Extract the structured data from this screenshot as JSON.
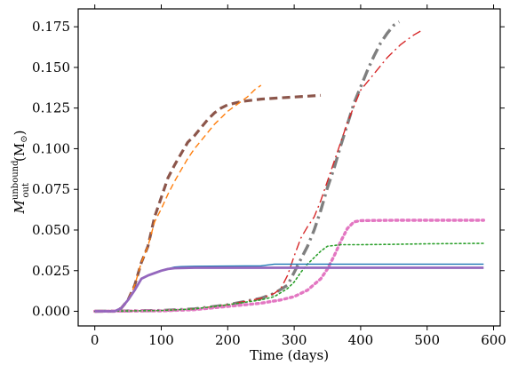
{
  "chart_data": {
    "type": "line",
    "xlabel": "Time (days)",
    "ylabel_main": "M",
    "ylabel_sup": "unbound",
    "ylabel_sub": "out",
    "ylabel_unit": "(M",
    "ylabel_unit_sub": "⊙",
    "ylabel_unit_close": ")",
    "xlim": [
      -25,
      610
    ],
    "ylim": [
      -0.009,
      0.186
    ],
    "xticks": [
      0,
      100,
      200,
      300,
      400,
      500,
      600
    ],
    "yticks": [
      0.0,
      0.025,
      0.05,
      0.075,
      0.1,
      0.125,
      0.15,
      0.175
    ],
    "xtick_labels": [
      "0",
      "100",
      "200",
      "300",
      "400",
      "500",
      "600"
    ],
    "ytick_labels": [
      "0.000",
      "0.025",
      "0.050",
      "0.075",
      "0.100",
      "0.125",
      "0.150",
      "0.175"
    ],
    "legend": "none",
    "grid": false,
    "series": [
      {
        "color": "#8c564b",
        "dash": "dashed",
        "width": 3.2,
        "points": [
          [
            0,
            0
          ],
          [
            30,
            0
          ],
          [
            40,
            0.002
          ],
          [
            50,
            0.007
          ],
          [
            60,
            0.016
          ],
          [
            70,
            0.03
          ],
          [
            80,
            0.04
          ],
          [
            90,
            0.058
          ],
          [
            100,
            0.07
          ],
          [
            110,
            0.082
          ],
          [
            120,
            0.09
          ],
          [
            130,
            0.097
          ],
          [
            140,
            0.104
          ],
          [
            150,
            0.108
          ],
          [
            160,
            0.113
          ],
          [
            170,
            0.118
          ],
          [
            180,
            0.122
          ],
          [
            190,
            0.125
          ],
          [
            200,
            0.127
          ],
          [
            220,
            0.129
          ],
          [
            250,
            0.1305
          ],
          [
            300,
            0.1318
          ],
          [
            340,
            0.1328
          ]
        ]
      },
      {
        "color": "#ff7f0e",
        "dash": "dashed",
        "width": 1.4,
        "points": [
          [
            0,
            0
          ],
          [
            30,
            0
          ],
          [
            40,
            0.002
          ],
          [
            50,
            0.007
          ],
          [
            60,
            0.016
          ],
          [
            70,
            0.03
          ],
          [
            80,
            0.04
          ],
          [
            90,
            0.055
          ],
          [
            100,
            0.063
          ],
          [
            110,
            0.072
          ],
          [
            120,
            0.08
          ],
          [
            130,
            0.087
          ],
          [
            140,
            0.094
          ],
          [
            150,
            0.1
          ],
          [
            160,
            0.105
          ],
          [
            170,
            0.11
          ],
          [
            180,
            0.115
          ],
          [
            190,
            0.119
          ],
          [
            200,
            0.123
          ],
          [
            210,
            0.126
          ],
          [
            220,
            0.129
          ],
          [
            230,
            0.132
          ],
          [
            240,
            0.136
          ],
          [
            250,
            0.139
          ]
        ]
      },
      {
        "color": "#7f7f7f",
        "dash": "dashdot",
        "width": 3.4,
        "points": [
          [
            0,
            0
          ],
          [
            100,
            0.0005
          ],
          [
            150,
            0.0015
          ],
          [
            200,
            0.004
          ],
          [
            250,
            0.008
          ],
          [
            270,
            0.011
          ],
          [
            290,
            0.016
          ],
          [
            300,
            0.024
          ],
          [
            310,
            0.032
          ],
          [
            320,
            0.04
          ],
          [
            330,
            0.05
          ],
          [
            340,
            0.062
          ],
          [
            350,
            0.076
          ],
          [
            360,
            0.088
          ],
          [
            370,
            0.102
          ],
          [
            380,
            0.115
          ],
          [
            390,
            0.128
          ],
          [
            400,
            0.138
          ],
          [
            410,
            0.148
          ],
          [
            420,
            0.157
          ],
          [
            430,
            0.165
          ],
          [
            440,
            0.171
          ],
          [
            450,
            0.176
          ],
          [
            458,
            0.178
          ]
        ]
      },
      {
        "color": "#d62728",
        "dash": "dashdot",
        "width": 1.4,
        "points": [
          [
            0,
            0
          ],
          [
            100,
            0.0005
          ],
          [
            150,
            0.0015
          ],
          [
            200,
            0.004
          ],
          [
            250,
            0.008
          ],
          [
            270,
            0.011
          ],
          [
            280,
            0.014
          ],
          [
            290,
            0.022
          ],
          [
            300,
            0.034
          ],
          [
            310,
            0.045
          ],
          [
            320,
            0.052
          ],
          [
            330,
            0.058
          ],
          [
            340,
            0.068
          ],
          [
            350,
            0.08
          ],
          [
            360,
            0.092
          ],
          [
            370,
            0.104
          ],
          [
            380,
            0.116
          ],
          [
            390,
            0.126
          ],
          [
            400,
            0.136
          ],
          [
            420,
            0.146
          ],
          [
            440,
            0.156
          ],
          [
            460,
            0.164
          ],
          [
            480,
            0.17
          ],
          [
            493,
            0.173
          ]
        ]
      },
      {
        "color": "#e377c2",
        "dash": "dotted",
        "width": 3.4,
        "points": [
          [
            0,
            0
          ],
          [
            100,
            0.0003
          ],
          [
            150,
            0.001
          ],
          [
            200,
            0.003
          ],
          [
            250,
            0.005
          ],
          [
            280,
            0.007
          ],
          [
            300,
            0.009
          ],
          [
            320,
            0.013
          ],
          [
            340,
            0.02
          ],
          [
            350,
            0.026
          ],
          [
            360,
            0.034
          ],
          [
            370,
            0.043
          ],
          [
            380,
            0.051
          ],
          [
            390,
            0.055
          ],
          [
            400,
            0.0558
          ],
          [
            450,
            0.056
          ],
          [
            500,
            0.056
          ],
          [
            585,
            0.056
          ]
        ]
      },
      {
        "color": "#2ca02c",
        "dash": "dotted",
        "width": 1.6,
        "points": [
          [
            0,
            0
          ],
          [
            100,
            0.0005
          ],
          [
            150,
            0.0015
          ],
          [
            200,
            0.004
          ],
          [
            250,
            0.007
          ],
          [
            270,
            0.009
          ],
          [
            290,
            0.014
          ],
          [
            300,
            0.018
          ],
          [
            310,
            0.024
          ],
          [
            320,
            0.029
          ],
          [
            330,
            0.033
          ],
          [
            340,
            0.037
          ],
          [
            350,
            0.04
          ],
          [
            370,
            0.041
          ],
          [
            400,
            0.041
          ],
          [
            450,
            0.0412
          ],
          [
            500,
            0.0415
          ],
          [
            585,
            0.0418
          ]
        ]
      },
      {
        "color": "#1f77b4",
        "dash": "solid",
        "width": 1.4,
        "points": [
          [
            0,
            0
          ],
          [
            30,
            0
          ],
          [
            40,
            0.002
          ],
          [
            50,
            0.007
          ],
          [
            60,
            0.013
          ],
          [
            70,
            0.02
          ],
          [
            80,
            0.022
          ],
          [
            90,
            0.0235
          ],
          [
            100,
            0.025
          ],
          [
            110,
            0.0262
          ],
          [
            120,
            0.0272
          ],
          [
            130,
            0.0275
          ],
          [
            150,
            0.0277
          ],
          [
            200,
            0.0278
          ],
          [
            250,
            0.028
          ],
          [
            270,
            0.029
          ],
          [
            300,
            0.029
          ],
          [
            400,
            0.029
          ],
          [
            500,
            0.029
          ],
          [
            585,
            0.029
          ]
        ]
      },
      {
        "color": "#9467bd",
        "dash": "solid",
        "width": 2.8,
        "points": [
          [
            0,
            0
          ],
          [
            30,
            0
          ],
          [
            40,
            0.002
          ],
          [
            50,
            0.007
          ],
          [
            60,
            0.013
          ],
          [
            70,
            0.02
          ],
          [
            80,
            0.022
          ],
          [
            90,
            0.0235
          ],
          [
            100,
            0.025
          ],
          [
            110,
            0.026
          ],
          [
            120,
            0.0265
          ],
          [
            150,
            0.0268
          ],
          [
            200,
            0.0268
          ],
          [
            300,
            0.0268
          ],
          [
            400,
            0.0268
          ],
          [
            500,
            0.0268
          ],
          [
            585,
            0.0268
          ]
        ]
      }
    ]
  }
}
